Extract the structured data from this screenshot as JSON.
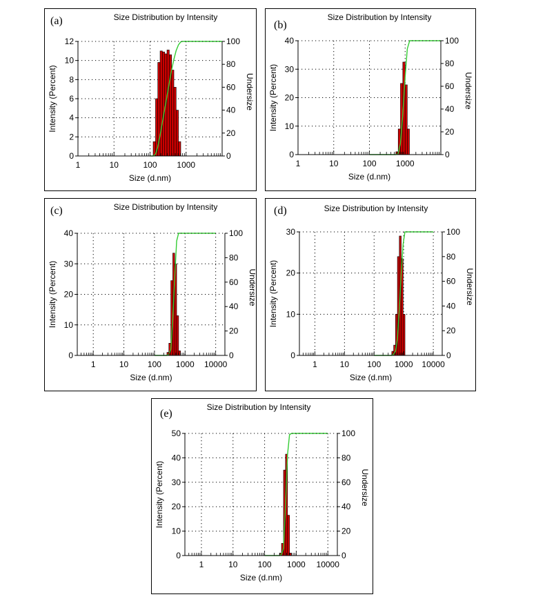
{
  "chart_data": [
    {
      "type": "bar",
      "id": "a",
      "panel_label": "(a)",
      "title": "Size Distribution by Intensity",
      "xlabel": "Size (d.nm)",
      "ylabel": "Intensity (Percent)",
      "y2label": "Undersize",
      "xscale": "log",
      "xlim": [
        1,
        10000
      ],
      "xticks": [
        1,
        10,
        100,
        1000
      ],
      "xtick_labels": [
        "1",
        "10",
        "100",
        "1000"
      ],
      "ylim": [
        0,
        12
      ],
      "yticks": [
        0,
        2,
        4,
        6,
        8,
        10,
        12
      ],
      "ytick_labels": [
        "0",
        "2",
        "4",
        "6",
        "8",
        "10",
        "12"
      ],
      "y2lim": [
        0,
        100
      ],
      "y2ticks": [
        0,
        20,
        40,
        60,
        80,
        100
      ],
      "y2tick_labels": [
        "0",
        "20",
        "40",
        "60",
        "80",
        "100"
      ],
      "bar_color": "#cc0000",
      "line_color": "#33cc33",
      "bars": [
        [
          122,
          1.5
        ],
        [
          142,
          6.0
        ],
        [
          164,
          9.8
        ],
        [
          190,
          11.0
        ],
        [
          220,
          10.9
        ],
        [
          255,
          10.7
        ],
        [
          295,
          11.1
        ],
        [
          342,
          10.6
        ],
        [
          396,
          9.0
        ],
        [
          458,
          7.2
        ],
        [
          530,
          4.8
        ],
        [
          614,
          1.5
        ]
      ],
      "undersize": [
        [
          100,
          0
        ],
        [
          122,
          0
        ],
        [
          142,
          1.6
        ],
        [
          164,
          7.9
        ],
        [
          190,
          18.1
        ],
        [
          220,
          29.6
        ],
        [
          255,
          40.9
        ],
        [
          295,
          52.2
        ],
        [
          342,
          63.9
        ],
        [
          396,
          75.0
        ],
        [
          458,
          84.4
        ],
        [
          530,
          92.0
        ],
        [
          614,
          97.0
        ],
        [
          711,
          99.6
        ],
        [
          800,
          100
        ],
        [
          10000,
          100
        ]
      ]
    },
    {
      "type": "bar",
      "id": "b",
      "panel_label": "(b)",
      "title": "Size Distribution by Intensity",
      "xlabel": "Size (d.nm)",
      "ylabel": "Intensity (Percent)",
      "y2label": "Undersize",
      "xscale": "log",
      "xlim": [
        1,
        10000
      ],
      "xticks": [
        1,
        10,
        100,
        1000
      ],
      "xtick_labels": [
        "1",
        "10",
        "100",
        "1000"
      ],
      "ylim": [
        0,
        40
      ],
      "yticks": [
        0,
        10,
        20,
        30,
        40
      ],
      "ytick_labels": [
        "0",
        "10",
        "20",
        "30",
        "40"
      ],
      "y2lim": [
        0,
        100
      ],
      "y2ticks": [
        0,
        20,
        40,
        60,
        80,
        100
      ],
      "y2tick_labels": [
        "0",
        "20",
        "40",
        "60",
        "80",
        "100"
      ],
      "bar_color": "#cc0000",
      "line_color": "#33cc33",
      "bars": [
        [
          550,
          1.0
        ],
        [
          640,
          9.0
        ],
        [
          740,
          25.0
        ],
        [
          860,
          32.5
        ],
        [
          1000,
          24.5
        ],
        [
          1150,
          9.0
        ]
      ],
      "undersize": [
        [
          100,
          0
        ],
        [
          550,
          0
        ],
        [
          640,
          1.0
        ],
        [
          740,
          10.1
        ],
        [
          860,
          35.4
        ],
        [
          1000,
          68.2
        ],
        [
          1150,
          92.9
        ],
        [
          1340,
          100
        ],
        [
          10000,
          100
        ]
      ]
    },
    {
      "type": "bar",
      "id": "c",
      "panel_label": "(c)",
      "title": "Size Distribution by Intensity",
      "xlabel": "Size (d.nm)",
      "ylabel": "Intensity (Percent)",
      "y2label": "Undersize",
      "xscale": "log",
      "xlim": [
        0.3,
        20000
      ],
      "xticks": [
        1,
        10,
        100,
        1000,
        10000
      ],
      "xtick_labels": [
        "1",
        "10",
        "100",
        "1000",
        "10000"
      ],
      "ylim": [
        0,
        40
      ],
      "yticks": [
        0,
        10,
        20,
        30,
        40
      ],
      "ytick_labels": [
        "0",
        "10",
        "20",
        "30",
        "40"
      ],
      "y2lim": [
        0,
        100
      ],
      "y2ticks": [
        0,
        20,
        40,
        60,
        80,
        100
      ],
      "y2tick_labels": [
        "0",
        "20",
        "40",
        "60",
        "80",
        "100"
      ],
      "bar_color": "#cc0000",
      "line_color": "#33cc33",
      "bars": [
        [
          255,
          1.0
        ],
        [
          295,
          4.0
        ],
        [
          342,
          24.5
        ],
        [
          396,
          33.5
        ],
        [
          458,
          30.0
        ],
        [
          530,
          13.0
        ],
        [
          614,
          1.5
        ]
      ],
      "undersize": [
        [
          100,
          0
        ],
        [
          255,
          0
        ],
        [
          295,
          1.0
        ],
        [
          342,
          5.0
        ],
        [
          396,
          29.6
        ],
        [
          458,
          63.4
        ],
        [
          530,
          93.7
        ],
        [
          614,
          100
        ],
        [
          10000,
          100
        ]
      ]
    },
    {
      "type": "bar",
      "id": "d",
      "panel_label": "(d)",
      "title": "Size Distribution by Intensity",
      "xlabel": "Size (d.nm)",
      "ylabel": "Intensity (Percent)",
      "y2label": "Undersize",
      "xscale": "log",
      "xlim": [
        0.3,
        20000
      ],
      "xticks": [
        1,
        10,
        100,
        1000,
        10000
      ],
      "xtick_labels": [
        "1",
        "10",
        "100",
        "1000",
        "10000"
      ],
      "ylim": [
        0,
        30
      ],
      "yticks": [
        0,
        10,
        20,
        30
      ],
      "ytick_labels": [
        "0",
        "10",
        "20",
        "30"
      ],
      "y2lim": [
        0,
        100
      ],
      "y2ticks": [
        0,
        20,
        40,
        60,
        80,
        100
      ],
      "y2tick_labels": [
        "0",
        "20",
        "40",
        "60",
        "80",
        "100"
      ],
      "bar_color": "#cc0000",
      "line_color": "#33cc33",
      "bars": [
        [
          396,
          1.0
        ],
        [
          458,
          2.5
        ],
        [
          530,
          10.0
        ],
        [
          614,
          24.0
        ],
        [
          711,
          29.0
        ],
        [
          825,
          23.5
        ],
        [
          955,
          10.0
        ]
      ],
      "undersize": [
        [
          100,
          0
        ],
        [
          396,
          0
        ],
        [
          458,
          1.0
        ],
        [
          530,
          3.5
        ],
        [
          614,
          13.5
        ],
        [
          711,
          37.5
        ],
        [
          825,
          66.5
        ],
        [
          955,
          90.0
        ],
        [
          1100,
          100
        ],
        [
          10000,
          100
        ]
      ]
    },
    {
      "type": "bar",
      "id": "e",
      "panel_label": "(e)",
      "title": "Size Distribution by Intensity",
      "xlabel": "Size (d.nm)",
      "ylabel": "Intensity (Percent)",
      "y2label": "Undersize",
      "xscale": "log",
      "xlim": [
        0.3,
        20000
      ],
      "xticks": [
        1,
        10,
        100,
        1000,
        10000
      ],
      "xtick_labels": [
        "1",
        "10",
        "100",
        "1000",
        "10000"
      ],
      "ylim": [
        0,
        50
      ],
      "yticks": [
        0,
        10,
        20,
        30,
        40,
        50
      ],
      "ytick_labels": [
        "0",
        "10",
        "20",
        "30",
        "40",
        "50"
      ],
      "y2lim": [
        0,
        100
      ],
      "y2ticks": [
        0,
        20,
        40,
        60,
        80,
        100
      ],
      "y2tick_labels": [
        "0",
        "20",
        "40",
        "60",
        "80",
        "100"
      ],
      "bar_color": "#cc0000",
      "line_color": "#33cc33",
      "bars": [
        [
          295,
          1.0
        ],
        [
          342,
          5.0
        ],
        [
          396,
          35.0
        ],
        [
          458,
          41.5
        ],
        [
          530,
          16.5
        ],
        [
          614,
          1.0
        ]
      ],
      "undersize": [
        [
          100,
          0
        ],
        [
          295,
          0
        ],
        [
          342,
          1.0
        ],
        [
          396,
          6.0
        ],
        [
          458,
          41.0
        ],
        [
          530,
          82.5
        ],
        [
          614,
          99.0
        ],
        [
          711,
          100
        ],
        [
          10000,
          100
        ]
      ]
    }
  ]
}
